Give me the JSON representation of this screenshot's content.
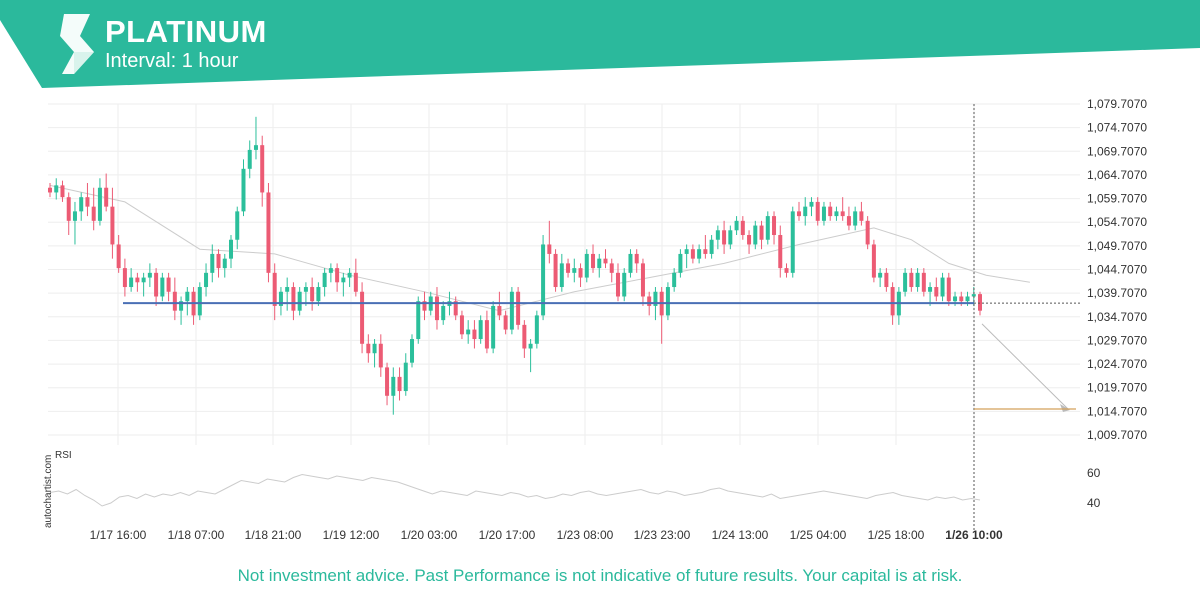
{
  "header": {
    "title": "PLATINUM",
    "interval": "Interval: 1 hour"
  },
  "colors": {
    "brand": "#2bb99c",
    "bull": "#2bbf9b",
    "bear": "#ec5b74",
    "level": "#4a6fb5",
    "target": "#d4a15a",
    "ma": "#cccccc"
  },
  "disclaimer": "Not investment advice. Past Performance is not indicative of future results. Your capital is at risk.",
  "watermark": "autochartist.com",
  "chart_data": {
    "type": "candlestick",
    "price_axis": {
      "ticks": [
        1079.707,
        1074.707,
        1069.707,
        1064.707,
        1059.707,
        1054.707,
        1049.707,
        1044.707,
        1039.707,
        1034.707,
        1029.707,
        1024.707,
        1019.707,
        1014.707,
        1009.707
      ],
      "tick_labels": [
        "1,079.7070",
        "1,074.7070",
        "1,069.7070",
        "1,064.7070",
        "1,059.7070",
        "1,054.7070",
        "1,049.7070",
        "1,044.7070",
        "1,039.7070",
        "1,034.7070",
        "1,029.7070",
        "1,024.7070",
        "1,019.7070",
        "1,014.7070",
        "1,009.7070"
      ]
    },
    "time_axis": {
      "labels": [
        "1/17 16:00",
        "1/18 07:00",
        "1/18 21:00",
        "1/19 12:00",
        "1/20 03:00",
        "1/20 17:00",
        "1/23 08:00",
        "1/23 23:00",
        "1/24 13:00",
        "1/25 04:00",
        "1/25 18:00",
        "1/26 10:00"
      ],
      "current_label": "1/26 10:00"
    },
    "support_level": 1037.6,
    "forecast": {
      "from": 1033.2,
      "target": 1015.2
    },
    "candles_ohlc": [
      [
        1062.0,
        1063.0,
        1060.0,
        1061.0
      ],
      [
        1061.0,
        1064.0,
        1059.5,
        1062.5
      ],
      [
        1062.5,
        1063.5,
        1059.0,
        1060.0
      ],
      [
        1060.0,
        1061.0,
        1052.0,
        1055.0
      ],
      [
        1055.0,
        1059.0,
        1050.0,
        1057.0
      ],
      [
        1057.0,
        1061.0,
        1055.0,
        1060.0
      ],
      [
        1060.0,
        1063.0,
        1056.0,
        1058.0
      ],
      [
        1058.0,
        1062.0,
        1053.0,
        1055.0
      ],
      [
        1055.0,
        1064.0,
        1054.0,
        1062.0
      ],
      [
        1062.0,
        1065.0,
        1057.0,
        1058.0
      ],
      [
        1058.0,
        1062.0,
        1047.0,
        1050.0
      ],
      [
        1050.0,
        1052.0,
        1044.0,
        1045.0
      ],
      [
        1045.0,
        1047.0,
        1039.0,
        1041.0
      ],
      [
        1041.0,
        1045.0,
        1040.0,
        1043.0
      ],
      [
        1043.0,
        1044.0,
        1040.0,
        1042.0
      ],
      [
        1042.0,
        1044.0,
        1039.0,
        1043.0
      ],
      [
        1043.0,
        1046.0,
        1041.0,
        1044.0
      ],
      [
        1044.0,
        1045.0,
        1037.0,
        1039.0
      ],
      [
        1039.0,
        1044.0,
        1038.0,
        1043.0
      ],
      [
        1043.0,
        1044.0,
        1038.0,
        1040.0
      ],
      [
        1040.0,
        1043.0,
        1034.0,
        1036.0
      ],
      [
        1036.0,
        1039.0,
        1033.0,
        1038.0
      ],
      [
        1038.0,
        1041.0,
        1035.0,
        1040.0
      ],
      [
        1040.0,
        1041.0,
        1033.0,
        1035.0
      ],
      [
        1035.0,
        1042.0,
        1034.0,
        1041.0
      ],
      [
        1041.0,
        1046.0,
        1039.0,
        1044.0
      ],
      [
        1044.0,
        1050.0,
        1042.0,
        1048.0
      ],
      [
        1048.0,
        1049.0,
        1043.0,
        1045.0
      ],
      [
        1045.0,
        1048.0,
        1043.0,
        1047.0
      ],
      [
        1047.0,
        1052.0,
        1045.0,
        1051.0
      ],
      [
        1051.0,
        1058.0,
        1049.0,
        1057.0
      ],
      [
        1057.0,
        1068.0,
        1056.0,
        1066.0
      ],
      [
        1066.0,
        1072.0,
        1064.0,
        1070.0
      ],
      [
        1070.0,
        1077.0,
        1068.0,
        1071.0
      ],
      [
        1071.0,
        1073.0,
        1058.0,
        1061.0
      ],
      [
        1061.0,
        1063.0,
        1042.0,
        1044.0
      ],
      [
        1044.0,
        1046.0,
        1034.0,
        1037.0
      ],
      [
        1037.0,
        1041.0,
        1035.0,
        1040.0
      ],
      [
        1040.0,
        1043.0,
        1036.0,
        1041.0
      ],
      [
        1041.0,
        1042.0,
        1034.0,
        1036.0
      ],
      [
        1036.0,
        1041.0,
        1035.0,
        1040.0
      ],
      [
        1040.0,
        1042.0,
        1037.0,
        1041.0
      ],
      [
        1041.0,
        1043.0,
        1036.0,
        1038.0
      ],
      [
        1038.0,
        1042.0,
        1037.0,
        1041.0
      ],
      [
        1041.0,
        1045.0,
        1039.0,
        1044.0
      ],
      [
        1044.0,
        1046.0,
        1042.0,
        1045.0
      ],
      [
        1045.0,
        1046.0,
        1040.0,
        1042.0
      ],
      [
        1042.0,
        1044.0,
        1039.0,
        1043.0
      ],
      [
        1043.0,
        1045.0,
        1041.0,
        1044.0
      ],
      [
        1044.0,
        1047.0,
        1039.0,
        1040.0
      ],
      [
        1040.0,
        1042.0,
        1027.0,
        1029.0
      ],
      [
        1029.0,
        1031.0,
        1025.0,
        1027.0
      ],
      [
        1027.0,
        1030.0,
        1024.0,
        1029.0
      ],
      [
        1029.0,
        1031.0,
        1022.0,
        1024.0
      ],
      [
        1024.0,
        1025.0,
        1016.0,
        1018.0
      ],
      [
        1018.0,
        1024.0,
        1014.0,
        1022.0
      ],
      [
        1022.0,
        1024.0,
        1017.0,
        1019.0
      ],
      [
        1019.0,
        1027.0,
        1018.0,
        1025.0
      ],
      [
        1025.0,
        1031.0,
        1024.0,
        1030.0
      ],
      [
        1030.0,
        1039.0,
        1029.0,
        1038.0
      ],
      [
        1038.0,
        1040.0,
        1034.0,
        1036.0
      ],
      [
        1036.0,
        1040.0,
        1035.0,
        1039.0
      ],
      [
        1039.0,
        1041.0,
        1032.0,
        1034.0
      ],
      [
        1034.0,
        1038.0,
        1033.0,
        1037.0
      ],
      [
        1037.0,
        1040.0,
        1035.0,
        1038.0
      ],
      [
        1038.0,
        1039.0,
        1034.0,
        1035.0
      ],
      [
        1035.0,
        1036.0,
        1030.0,
        1031.0
      ],
      [
        1031.0,
        1034.0,
        1029.0,
        1032.0
      ],
      [
        1032.0,
        1034.0,
        1028.0,
        1030.0
      ],
      [
        1030.0,
        1035.0,
        1029.0,
        1034.0
      ],
      [
        1034.0,
        1036.0,
        1027.0,
        1028.0
      ],
      [
        1028.0,
        1038.0,
        1027.0,
        1037.0
      ],
      [
        1037.0,
        1040.0,
        1034.0,
        1035.0
      ],
      [
        1035.0,
        1036.0,
        1031.0,
        1032.0
      ],
      [
        1032.0,
        1041.0,
        1031.0,
        1040.0
      ],
      [
        1040.0,
        1041.0,
        1032.0,
        1033.0
      ],
      [
        1033.0,
        1034.0,
        1026.0,
        1028.0
      ],
      [
        1028.0,
        1030.0,
        1023.0,
        1029.0
      ],
      [
        1029.0,
        1036.0,
        1028.0,
        1035.0
      ],
      [
        1035.0,
        1052.0,
        1034.0,
        1050.0
      ],
      [
        1050.0,
        1055.0,
        1046.0,
        1048.0
      ],
      [
        1048.0,
        1049.0,
        1040.0,
        1041.0
      ],
      [
        1041.0,
        1048.0,
        1040.0,
        1046.0
      ],
      [
        1046.0,
        1047.0,
        1043.0,
        1044.0
      ],
      [
        1044.0,
        1047.0,
        1042.0,
        1045.0
      ],
      [
        1045.0,
        1046.0,
        1041.0,
        1043.0
      ],
      [
        1043.0,
        1049.0,
        1042.0,
        1048.0
      ],
      [
        1048.0,
        1050.0,
        1044.0,
        1045.0
      ],
      [
        1045.0,
        1048.0,
        1043.0,
        1047.0
      ],
      [
        1047.0,
        1049.0,
        1045.0,
        1046.0
      ],
      [
        1046.0,
        1047.0,
        1042.0,
        1044.0
      ],
      [
        1044.0,
        1046.0,
        1038.0,
        1039.0
      ],
      [
        1039.0,
        1045.0,
        1038.0,
        1044.0
      ],
      [
        1044.0,
        1049.0,
        1043.0,
        1048.0
      ],
      [
        1048.0,
        1049.0,
        1044.0,
        1046.0
      ],
      [
        1046.0,
        1047.0,
        1037.0,
        1039.0
      ],
      [
        1039.0,
        1040.0,
        1035.0,
        1037.0
      ],
      [
        1037.0,
        1041.0,
        1034.0,
        1040.0
      ],
      [
        1040.0,
        1041.0,
        1029.0,
        1035.0
      ],
      [
        1035.0,
        1042.0,
        1034.0,
        1041.0
      ],
      [
        1041.0,
        1045.0,
        1040.0,
        1044.0
      ],
      [
        1044.0,
        1049.0,
        1043.0,
        1048.0
      ],
      [
        1048.0,
        1050.0,
        1045.0,
        1049.0
      ],
      [
        1049.0,
        1050.0,
        1046.0,
        1047.0
      ],
      [
        1047.0,
        1050.0,
        1046.0,
        1049.0
      ],
      [
        1049.0,
        1052.0,
        1047.0,
        1048.0
      ],
      [
        1048.0,
        1052.0,
        1047.0,
        1051.0
      ],
      [
        1051.0,
        1054.0,
        1049.0,
        1053.0
      ],
      [
        1053.0,
        1055.0,
        1048.0,
        1050.0
      ],
      [
        1050.0,
        1054.0,
        1049.0,
        1053.0
      ],
      [
        1053.0,
        1056.0,
        1052.0,
        1055.0
      ],
      [
        1055.0,
        1056.0,
        1051.0,
        1052.0
      ],
      [
        1052.0,
        1053.0,
        1048.0,
        1050.0
      ],
      [
        1050.0,
        1055.0,
        1049.0,
        1054.0
      ],
      [
        1054.0,
        1055.0,
        1049.0,
        1051.0
      ],
      [
        1051.0,
        1057.0,
        1050.0,
        1056.0
      ],
      [
        1056.0,
        1057.0,
        1050.0,
        1052.0
      ],
      [
        1052.0,
        1054.0,
        1043.0,
        1045.0
      ],
      [
        1045.0,
        1046.0,
        1043.0,
        1044.0
      ],
      [
        1044.0,
        1058.0,
        1043.0,
        1057.0
      ],
      [
        1057.0,
        1059.0,
        1055.0,
        1056.0
      ],
      [
        1056.0,
        1060.0,
        1054.0,
        1058.0
      ],
      [
        1058.0,
        1060.0,
        1056.0,
        1059.0
      ],
      [
        1059.0,
        1060.0,
        1054.0,
        1055.0
      ],
      [
        1055.0,
        1059.0,
        1054.0,
        1058.0
      ],
      [
        1058.0,
        1059.0,
        1055.0,
        1056.0
      ],
      [
        1056.0,
        1058.0,
        1055.0,
        1057.0
      ],
      [
        1057.0,
        1060.0,
        1055.0,
        1056.0
      ],
      [
        1056.0,
        1058.0,
        1053.0,
        1054.0
      ],
      [
        1054.0,
        1058.0,
        1053.0,
        1057.0
      ],
      [
        1057.0,
        1059.0,
        1054.0,
        1055.0
      ],
      [
        1055.0,
        1056.0,
        1049.0,
        1050.0
      ],
      [
        1050.0,
        1051.0,
        1042.0,
        1043.0
      ],
      [
        1043.0,
        1045.0,
        1041.0,
        1044.0
      ],
      [
        1044.0,
        1045.0,
        1040.0,
        1041.0
      ],
      [
        1041.0,
        1042.0,
        1033.0,
        1035.0
      ],
      [
        1035.0,
        1041.0,
        1033.0,
        1040.0
      ],
      [
        1040.0,
        1045.0,
        1039.0,
        1044.0
      ],
      [
        1044.0,
        1045.0,
        1040.0,
        1041.0
      ],
      [
        1041.0,
        1045.0,
        1040.0,
        1044.0
      ],
      [
        1044.0,
        1045.0,
        1039.0,
        1040.0
      ],
      [
        1040.0,
        1042.0,
        1037.0,
        1041.0
      ],
      [
        1041.0,
        1043.0,
        1038.0,
        1039.0
      ],
      [
        1039.0,
        1044.0,
        1038.0,
        1043.0
      ],
      [
        1043.0,
        1044.0,
        1037.0,
        1038.0
      ],
      [
        1038.0,
        1040.0,
        1037.0,
        1039.0
      ],
      [
        1039.0,
        1040.0,
        1037.0,
        1038.0
      ],
      [
        1038.0,
        1040.0,
        1037.0,
        1039.0
      ],
      [
        1039.0,
        1041.0,
        1037.0,
        1039.5
      ],
      [
        1039.5,
        1040.0,
        1035.0,
        1036.0
      ]
    ],
    "moving_average": [
      [
        0,
        1062.5
      ],
      [
        12,
        1059.0
      ],
      [
        24,
        1049.0
      ],
      [
        36,
        1048.0
      ],
      [
        48,
        1043.5
      ],
      [
        60,
        1040.0
      ],
      [
        72,
        1036.0
      ],
      [
        84,
        1040.0
      ],
      [
        96,
        1043.0
      ],
      [
        108,
        1046.0
      ],
      [
        120,
        1050.0
      ],
      [
        132,
        1053.5
      ],
      [
        138,
        1051.0
      ],
      [
        144,
        1046.0
      ],
      [
        150,
        1043.5
      ],
      [
        157,
        1042.0
      ]
    ],
    "rsi": {
      "label": "RSI",
      "ticks": [
        60,
        40
      ],
      "values": [
        47,
        48,
        46,
        49,
        45,
        42,
        38,
        40,
        44,
        45,
        43,
        46,
        44,
        46,
        45,
        47,
        45,
        48,
        47,
        46,
        49,
        52,
        55,
        54,
        53,
        56,
        55,
        54,
        57,
        59,
        58,
        57,
        56,
        58,
        57,
        56,
        55,
        57,
        56,
        55,
        54,
        52,
        50,
        48,
        46,
        48,
        47,
        46,
        45,
        48,
        47,
        46,
        45,
        47,
        46,
        44,
        45,
        43,
        44,
        46,
        45,
        47,
        48,
        46,
        45,
        46,
        47,
        48,
        49,
        47,
        46,
        48,
        47,
        45,
        46,
        47,
        49,
        50,
        48,
        47,
        46,
        45,
        44,
        46,
        43,
        44,
        45,
        46,
        47,
        48,
        47,
        46,
        45,
        44,
        43,
        45,
        46,
        47,
        45,
        44,
        43,
        42,
        44,
        43,
        44,
        42,
        43,
        42
      ]
    }
  }
}
